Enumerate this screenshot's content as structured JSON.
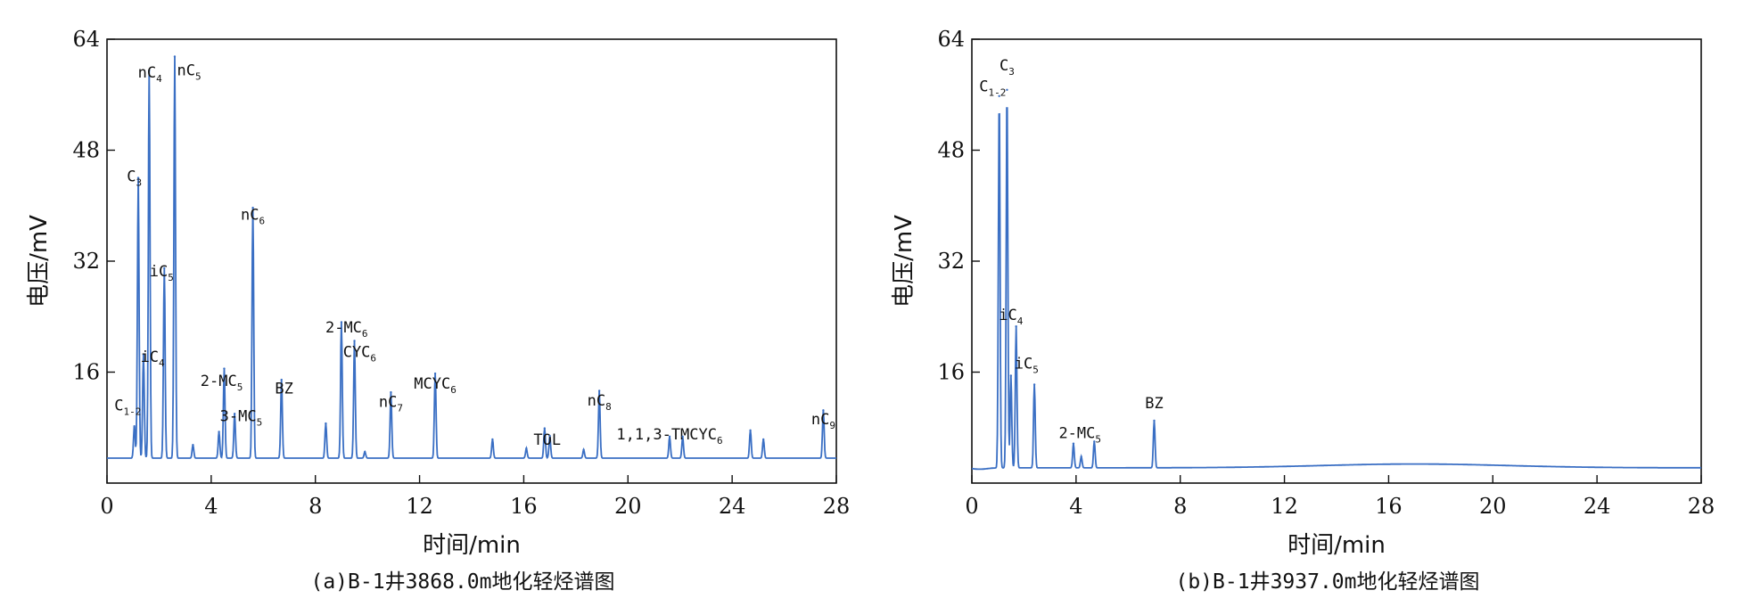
{
  "chart_data": [
    {
      "id": "a",
      "type": "line",
      "title": "(a)B-1井3868.0m地化轻烃谱图",
      "xlabel": "时间/min",
      "ylabel": "电压/mV",
      "xlim": [
        0,
        28
      ],
      "ylim": [
        0,
        64
      ],
      "xticks": [
        0,
        4,
        8,
        12,
        16,
        20,
        24,
        28
      ],
      "yticks": [
        16,
        32,
        48,
        64
      ],
      "baseline": 3.6,
      "line_color": "#3a6fc4",
      "peaks": [
        {
          "x": 1.05,
          "y": 8.2,
          "label": "C",
          "sub": "1-2",
          "lx": 0.8,
          "ly": 10.5
        },
        {
          "x": 1.2,
          "y": 44,
          "label": "C",
          "sub": "3",
          "lx": 1.05,
          "ly": 43.5
        },
        {
          "x": 1.4,
          "y": 18.5,
          "label": "iC",
          "sub": "4",
          "lx": 1.75,
          "ly": 17.5
        },
        {
          "x": 1.62,
          "y": 59.5,
          "label": "nC",
          "sub": "4",
          "lx": 1.65,
          "ly": 58.5
        },
        {
          "x": 2.2,
          "y": 31,
          "label": "iC",
          "sub": "5",
          "lx": 2.1,
          "ly": 29.8
        },
        {
          "x": 2.6,
          "y": 61.5,
          "label": "nC",
          "sub": "5",
          "lx": 3.15,
          "ly": 58.8
        },
        {
          "x": 3.3,
          "y": 5.5
        },
        {
          "x": 4.3,
          "y": 7.4
        },
        {
          "x": 4.5,
          "y": 16.5,
          "label": "2-MC",
          "sub": "5",
          "lx": 4.4,
          "ly": 14.0
        },
        {
          "x": 4.9,
          "y": 10.0,
          "label": "3-MC",
          "sub": "5",
          "lx": 5.15,
          "ly": 8.9
        },
        {
          "x": 5.6,
          "y": 39.7,
          "label": "nC",
          "sub": "6",
          "lx": 5.6,
          "ly": 38.0
        },
        {
          "x": 6.7,
          "y": 14.9,
          "label": "BZ",
          "lx": 6.8,
          "ly": 12.9
        },
        {
          "x": 8.4,
          "y": 8.6
        },
        {
          "x": 9.0,
          "y": 23.2,
          "label": "2-MC",
          "sub": "6",
          "lx": 9.2,
          "ly": 21.7
        },
        {
          "x": 9.5,
          "y": 20.5,
          "label": "CYC",
          "sub": "6",
          "lx": 9.7,
          "ly": 18.2
        },
        {
          "x": 9.9,
          "y": 4.5
        },
        {
          "x": 10.9,
          "y": 13.1,
          "label": "nC",
          "sub": "7",
          "lx": 10.9,
          "ly": 11.0
        },
        {
          "x": 12.6,
          "y": 15.8,
          "label": "MCYC",
          "sub": "6",
          "lx": 12.6,
          "ly": 13.6
        },
        {
          "x": 14.8,
          "y": 6.3
        },
        {
          "x": 16.1,
          "y": 5.0
        },
        {
          "x": 16.8,
          "y": 7.9,
          "label": "TOL",
          "lx": 16.9,
          "ly": 5.5
        },
        {
          "x": 17.0,
          "y": 6.8
        },
        {
          "x": 18.3,
          "y": 4.8
        },
        {
          "x": 18.9,
          "y": 13.3,
          "label": "nC",
          "sub": "8",
          "lx": 18.9,
          "ly": 11.2
        },
        {
          "x": 21.6,
          "y": 6.7,
          "label": "1,1,3-TMCYC",
          "sub": "6",
          "lx": 21.6,
          "ly": 6.3
        },
        {
          "x": 22.1,
          "y": 6.7
        },
        {
          "x": 24.7,
          "y": 7.6
        },
        {
          "x": 25.2,
          "y": 6.3
        },
        {
          "x": 27.5,
          "y": 10.5,
          "label": "nC",
          "sub": "9",
          "lx": 27.5,
          "ly": 8.5
        }
      ]
    },
    {
      "id": "b",
      "type": "line",
      "title": "(b)B-1井3937.0m地化轻烃谱图",
      "xlabel": "时间/min",
      "ylabel": "电压/mV",
      "xlim": [
        0,
        28
      ],
      "ylim": [
        0,
        64
      ],
      "xticks": [
        0,
        4,
        8,
        12,
        16,
        20,
        24,
        28
      ],
      "yticks": [
        16,
        32,
        48,
        64
      ],
      "baseline": 2.2,
      "line_color": "#3a6fc4",
      "peaks": [
        {
          "x": 1.05,
          "y": 55.8,
          "label": "C",
          "sub": "1-2",
          "lx": 0.8,
          "ly": 56.5
        },
        {
          "x": 1.35,
          "y": 56.7,
          "label": "C",
          "sub": "3",
          "lx": 1.35,
          "ly": 59.5
        },
        {
          "x": 1.5,
          "y": 15.5
        },
        {
          "x": 1.7,
          "y": 22.6,
          "label": "iC",
          "sub": "4",
          "lx": 1.5,
          "ly": 23.5
        },
        {
          "x": 2.4,
          "y": 14.2,
          "label": "iC",
          "sub": "5",
          "lx": 2.1,
          "ly": 16.5
        },
        {
          "x": 3.9,
          "y": 5.7,
          "label": "2-MC",
          "sub": "5",
          "lx": 4.15,
          "ly": 6.5
        },
        {
          "x": 4.2,
          "y": 3.8
        },
        {
          "x": 4.7,
          "y": 6.0
        },
        {
          "x": 7.0,
          "y": 9.0,
          "label": "BZ",
          "lx": 7.0,
          "ly": 10.8
        }
      ]
    }
  ]
}
